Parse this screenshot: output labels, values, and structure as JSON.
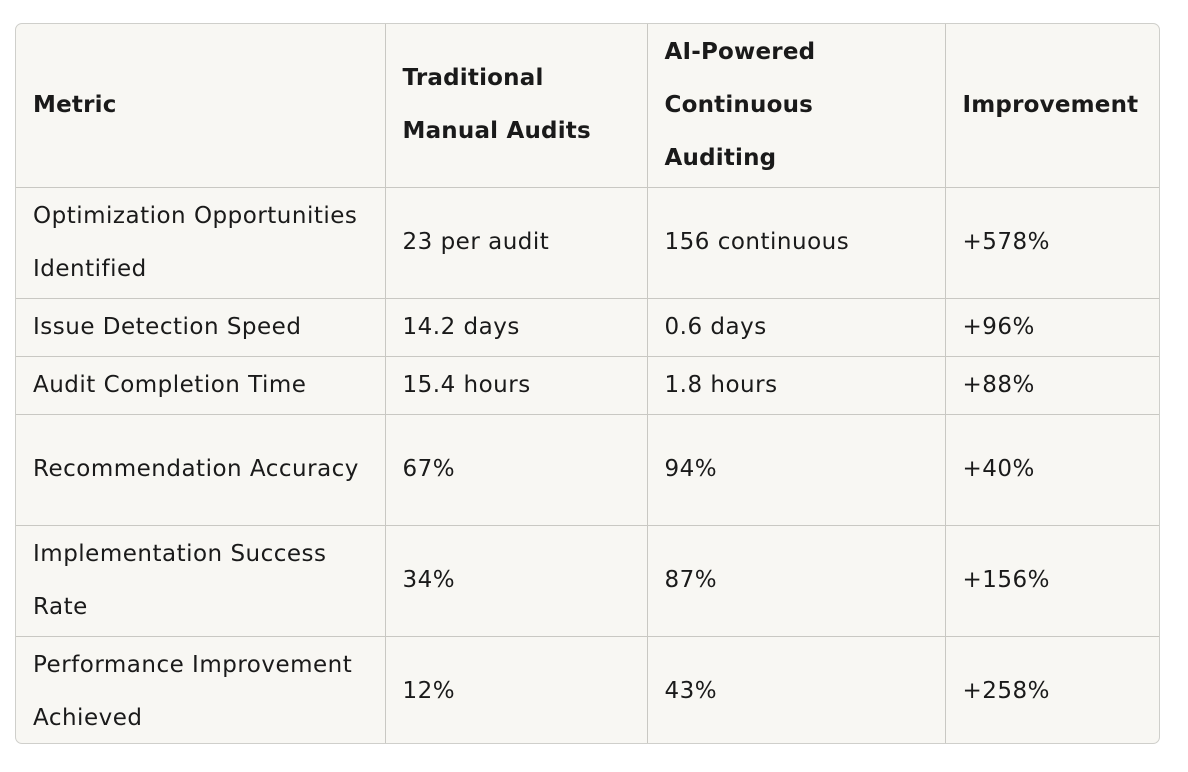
{
  "table": {
    "headers": [
      "Metric",
      "Traditional Manual Audits",
      "AI-Powered Continuous Auditing",
      "Improvement"
    ],
    "rows": [
      [
        "Optimization Opportunities Identified",
        "23 per audit",
        "156 continuous",
        "+578%"
      ],
      [
        "Issue Detection Speed",
        "14.2 days",
        "0.6 days",
        "+96%"
      ],
      [
        "Audit Completion Time",
        "15.4 hours",
        "1.8 hours",
        "+88%"
      ],
      [
        "Recommendation Accuracy",
        "67%",
        "94%",
        "+40%"
      ],
      [
        "Implementation Success Rate",
        "34%",
        "87%",
        "+156%"
      ],
      [
        "Performance Improvement Achieved",
        "12%",
        "43%",
        "+258%"
      ]
    ]
  }
}
